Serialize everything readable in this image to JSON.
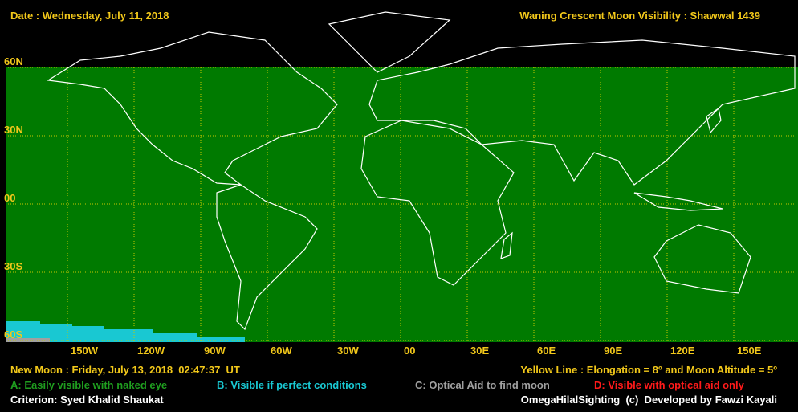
{
  "header": {
    "date": "Date : Wednesday, July 11, 2018",
    "title": "Waning Crescent Moon Visibility : Shawwal 1439"
  },
  "map": {
    "lat_labels": [
      "60N",
      "30N",
      "00",
      "30S",
      "60S"
    ],
    "lon_labels": [
      "150W",
      "120W",
      "90W",
      "60W",
      "30W",
      "00",
      "30E",
      "60E",
      "90E",
      "120E",
      "150E"
    ]
  },
  "footer": {
    "new_moon": "New Moon : Friday, July 13, 2018  02:47:37  UT",
    "yellow_line": "Yellow Line : Elongation = 8º and Moon Altitude = 5º",
    "legend": [
      {
        "label": "A: Easily visible with naked eye",
        "color": "#1f9e1f"
      },
      {
        "label": "B: Visible if perfect conditions",
        "color": "#19c8d2"
      },
      {
        "label": "C: Optical Aid to find moon",
        "color": "#a0a0a0"
      },
      {
        "label": "D: Visible with optical aid only",
        "color": "#ff1a1a"
      }
    ],
    "criterion": "Criterion: Syed Khalid Shaukat",
    "credit": "OmegaHilalSighting  (c)  Developed by Fawzi Kayali"
  }
}
